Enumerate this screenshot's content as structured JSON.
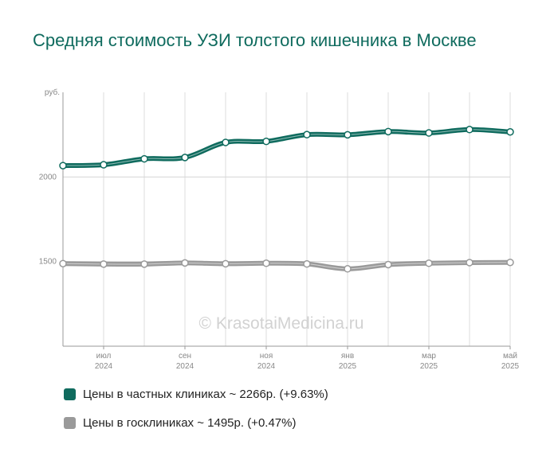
{
  "chart_data": {
    "type": "line",
    "title": "Средняя стоимость УЗИ толстого кишечника в Москве",
    "ylabel": "руб.",
    "ylim": [
      1000,
      2500
    ],
    "yticks": [
      1500,
      2000
    ],
    "watermark": "© KrasotaiMedicina.ru",
    "x_ticks": [
      {
        "idx": 1,
        "month": "июл",
        "year": "2024"
      },
      {
        "idx": 3,
        "month": "сен",
        "year": "2024"
      },
      {
        "idx": 5,
        "month": "ноя",
        "year": "2024"
      },
      {
        "idx": 7,
        "month": "янв",
        "year": "2025"
      },
      {
        "idx": 9,
        "month": "мар",
        "year": "2025"
      },
      {
        "idx": 11,
        "month": "май",
        "year": "2025"
      }
    ],
    "x": [
      "2024-06",
      "2024-07",
      "2024-08",
      "2024-09",
      "2024-10",
      "2024-11",
      "2024-12",
      "2025-01",
      "2025-02",
      "2025-03",
      "2025-04",
      "2025-05"
    ],
    "series": [
      {
        "name": "Цены в частных клиниках ~ 2266р. (+9.63%)",
        "color": "#0f6b5e",
        "values": [
          2067,
          2072,
          2107,
          2115,
          2204,
          2210,
          2250,
          2249,
          2268,
          2260,
          2280,
          2266
        ]
      },
      {
        "name": "Цены в госклиниках ~ 1495р. (+0.47%)",
        "color": "#9a9a9a",
        "values": [
          1488,
          1485,
          1485,
          1492,
          1487,
          1490,
          1486,
          1457,
          1482,
          1490,
          1494,
          1495
        ]
      }
    ],
    "grid": true,
    "legend_position": "bottom"
  }
}
